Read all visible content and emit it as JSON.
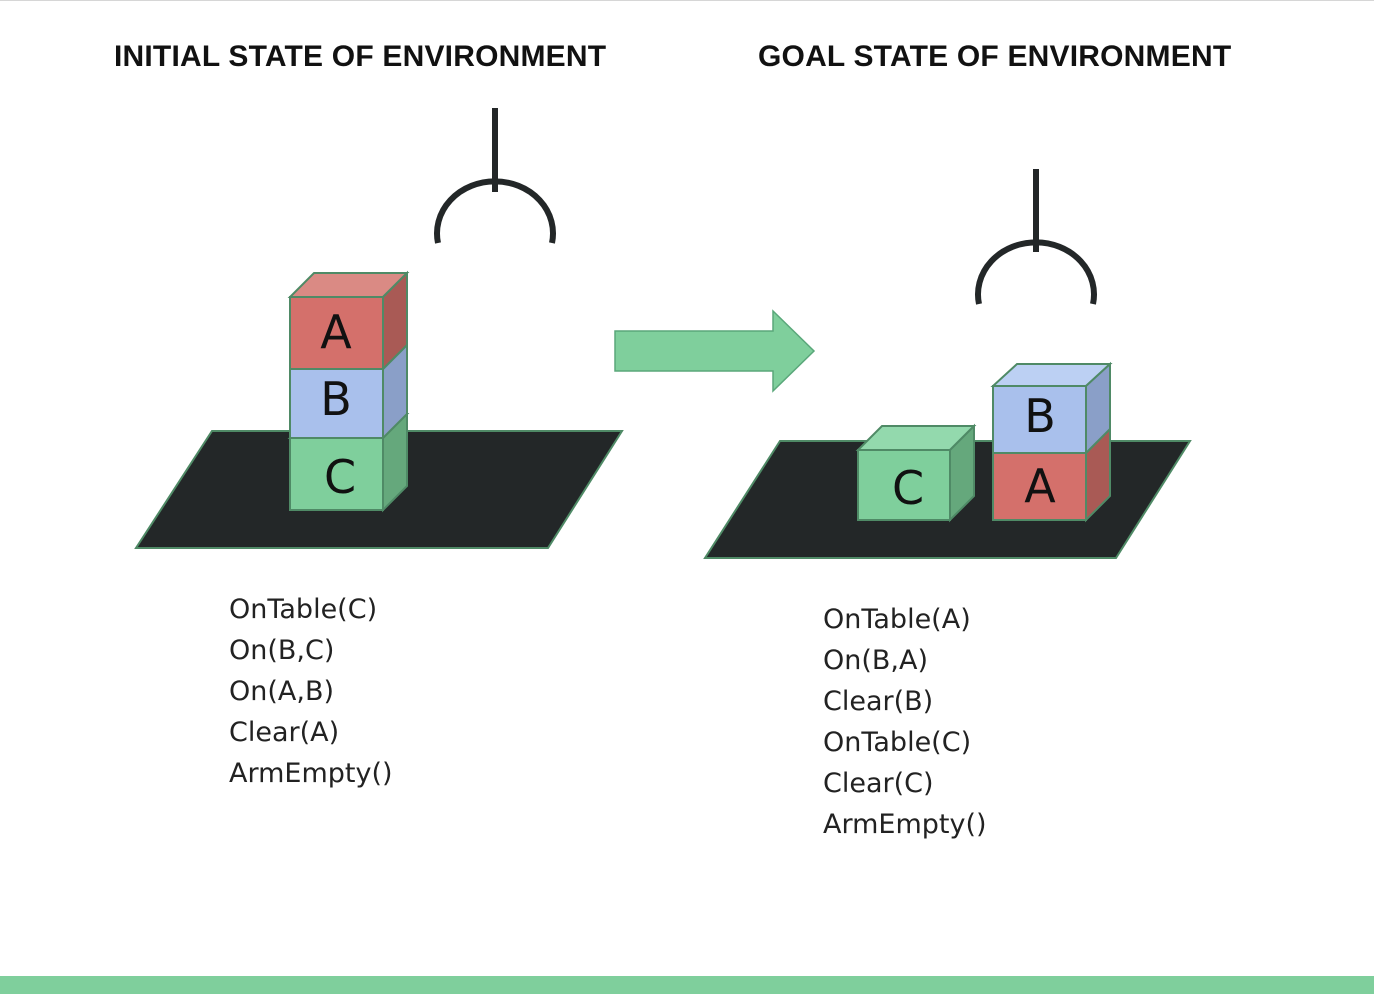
{
  "titles": {
    "initial": "INITIAL STATE OF ENVIRONMENT",
    "goal": "GOAL STATE OF ENVIRONMENT"
  },
  "initial_state": {
    "blocks": [
      {
        "label": "A",
        "color": "#d4706b"
      },
      {
        "label": "B",
        "color": "#a9c0ec"
      },
      {
        "label": "C",
        "color": "#7fcf9c"
      }
    ],
    "predicates": [
      "OnTable(C)",
      "On(B,C)",
      "On(A,B)",
      "Clear(A)",
      "ArmEmpty()"
    ]
  },
  "goal_state": {
    "blocks": [
      {
        "label": "C",
        "color": "#7fcf9c"
      },
      {
        "label": "B",
        "color": "#a9c0ec"
      },
      {
        "label": "A",
        "color": "#d4706b"
      }
    ],
    "predicates": [
      "OnTable(A)",
      "On(B,A)",
      "Clear(B)",
      "OnTable(C)",
      "Clear(C)",
      "ArmEmpty()"
    ]
  },
  "colors": {
    "table": "#232728",
    "arrow": "#7fcf9c",
    "gripper": "#232728",
    "accent_bar": "#7fcf9c"
  }
}
